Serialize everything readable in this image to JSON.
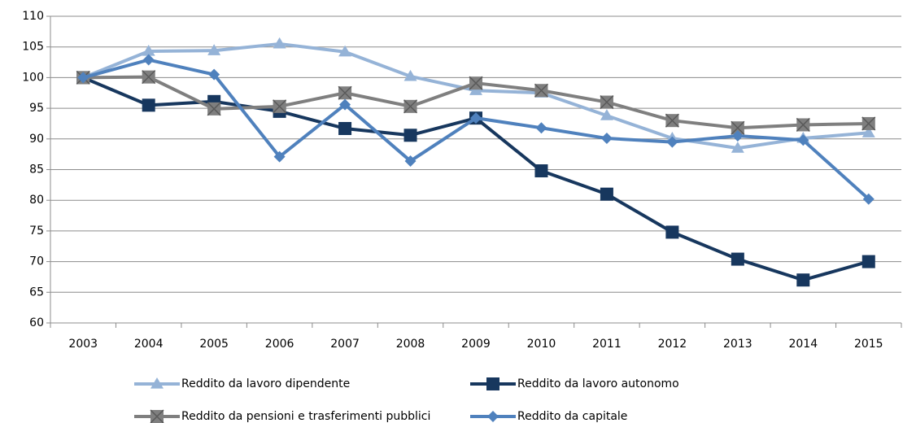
{
  "chart_data": {
    "type": "line",
    "categories": [
      "2003",
      "2004",
      "2005",
      "2006",
      "2007",
      "2008",
      "2009",
      "2010",
      "2011",
      "2012",
      "2013",
      "2014",
      "2015"
    ],
    "series": [
      {
        "name": "Reddito da lavoro dipendente",
        "color": "#95b3d7",
        "marker": "triangle",
        "values": [
          100,
          104.3,
          104.4,
          105.5,
          104.2,
          100.2,
          97.9,
          97.5,
          93.8,
          90.1,
          88.5,
          90.1,
          91.0
        ]
      },
      {
        "name": "Reddito da lavoro autonomo",
        "color": "#17375e",
        "marker": "square",
        "values": [
          100,
          95.5,
          96.1,
          94.5,
          91.7,
          90.6,
          93.4,
          84.8,
          81.0,
          74.8,
          70.4,
          67.0,
          70.0
        ]
      },
      {
        "name": "Reddito da pensioni e trasferimenti pubblici",
        "color": "#7f7f7f",
        "marker": "xsquare",
        "values": [
          100,
          100.1,
          94.9,
          95.3,
          97.5,
          95.3,
          99.1,
          97.9,
          96.0,
          93.0,
          91.8,
          92.3,
          92.5
        ]
      },
      {
        "name": "Reddito da capitale",
        "color": "#4f81bd",
        "marker": "diamond",
        "values": [
          100,
          102.9,
          100.5,
          87.1,
          95.6,
          86.4,
          93.4,
          91.8,
          90.1,
          89.5,
          90.5,
          89.8,
          80.2
        ]
      }
    ],
    "ylim": [
      60,
      110
    ],
    "yticks": [
      60,
      65,
      70,
      75,
      80,
      85,
      90,
      95,
      100,
      105,
      110
    ],
    "grid": true,
    "legend": "bottom"
  }
}
